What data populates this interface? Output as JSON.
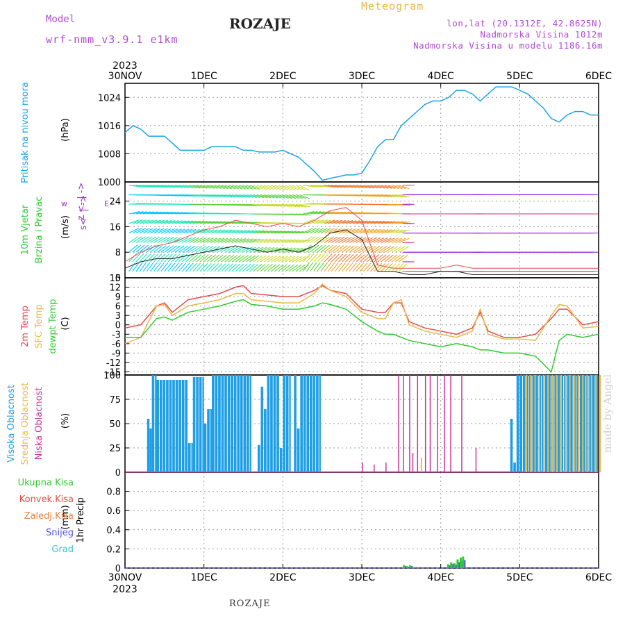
{
  "header": {
    "model_label": "Model",
    "model_name": "wrf-nmm_v3.9.1 e1km",
    "title": "ROZAJE",
    "meteogram_label": "Meteogram",
    "coords": "lon,lat (20.1312E, 42.8625N)",
    "altitude": "Nadmorska Visina 1012m",
    "model_altitude": "Nadmorska Visina u modelu 1186.16m"
  },
  "footer": {
    "location": "ROZAJE",
    "watermark": "made by Angel"
  },
  "colors": {
    "pressure": "#1aa3e8",
    "wind_label": "#2ecc2e",
    "temp2m": "#e84a4a",
    "sfc_temp": "#e8b84c",
    "dewpoint": "#2ecc2e",
    "high_cloud": "#1e9ee6",
    "mid_cloud": "#e8b84c",
    "low_cloud": "#cc3399",
    "precip_total": "#2ecc2e",
    "precip_conv": "#e84a4a",
    "precip_freezing": "#f07d3a",
    "snow": "#5050e8",
    "hail": "#3cc7c7"
  },
  "chart_data": [
    {
      "id": "pressure",
      "type": "line",
      "ylabel": "Pritisak na nivou mora",
      "unit": "(hPa)",
      "ylim": [
        1000,
        1028
      ],
      "yticks": [
        1000,
        1008,
        1016,
        1024
      ],
      "x_days": [
        0,
        0.1,
        0.2,
        0.3,
        0.4,
        0.5,
        0.6,
        0.7,
        0.8,
        0.9,
        1.0,
        1.1,
        1.2,
        1.3,
        1.4,
        1.5,
        1.6,
        1.7,
        1.8,
        1.9,
        2.0,
        2.1,
        2.2,
        2.3,
        2.4,
        2.5,
        2.6,
        2.7,
        2.8,
        2.9,
        3.0,
        3.1,
        3.2,
        3.3,
        3.4,
        3.5,
        3.6,
        3.7,
        3.8,
        3.9,
        4.0,
        4.1,
        4.2,
        4.3,
        4.4,
        4.5,
        4.6,
        4.7,
        4.8,
        4.9,
        5.0,
        5.1,
        5.2,
        5.3,
        5.4,
        5.5,
        5.6,
        5.7,
        5.8,
        5.9,
        6.0
      ],
      "values": [
        1014,
        1016,
        1015,
        1013,
        1013,
        1013,
        1011,
        1009,
        1009,
        1009,
        1009,
        1010,
        1010,
        1010,
        1010,
        1009,
        1009,
        1008.5,
        1008.5,
        1008.5,
        1009,
        1008,
        1007,
        1005,
        1003,
        1000.5,
        1001,
        1001.5,
        1002,
        1002,
        1002.5,
        1006,
        1010,
        1012,
        1012,
        1016,
        1018,
        1020,
        1022,
        1023,
        1023,
        1024,
        1026,
        1026,
        1025,
        1023,
        1025,
        1027,
        1027,
        1027,
        1026,
        1025,
        1023,
        1021,
        1018,
        1017,
        1019,
        1020,
        1020,
        1019,
        1019
      ]
    },
    {
      "id": "wind",
      "type": "line",
      "ylabel": "10m Vjetar",
      "ylabel2": "Brzina i Pravac",
      "unit": "(m/s)",
      "legend_lines": [
        "z",
        "<- | ->",
        "w",
        "E",
        "s<- | ->"
      ],
      "ylim": [
        0,
        30
      ],
      "yticks": [
        0,
        8,
        16,
        24
      ],
      "x_days": [
        0,
        0.2,
        0.4,
        0.6,
        0.8,
        1.0,
        1.2,
        1.4,
        1.6,
        1.8,
        2.0,
        2.2,
        2.4,
        2.6,
        2.8,
        3.0,
        3.2,
        3.4,
        3.6,
        3.8,
        4.0,
        4.2,
        4.4,
        4.6,
        4.8,
        5.0,
        5.2,
        5.4,
        5.6,
        5.8,
        6.0
      ],
      "speed": [
        3,
        5,
        6,
        6,
        7,
        8,
        9,
        10,
        9,
        8,
        9,
        8,
        10,
        14,
        15,
        12,
        2,
        2,
        1,
        1,
        2,
        2,
        1,
        1,
        1,
        1,
        1,
        1,
        1,
        1,
        1
      ],
      "gust": [
        5,
        8,
        10,
        11,
        13,
        15,
        16,
        18,
        17,
        16,
        17,
        16,
        18,
        21,
        22,
        18,
        4,
        3,
        3,
        3,
        3,
        4,
        3,
        3,
        3,
        3,
        3,
        3,
        3,
        3,
        3
      ]
    },
    {
      "id": "temperature",
      "type": "line",
      "ylabel": "2m Temp",
      "ylabel2": "SFC Temp",
      "ylabel3": "dewpt Temp",
      "unit": "(C)",
      "ylim": [
        -16,
        15
      ],
      "yticks": [
        -15,
        -12,
        -9,
        -6,
        -3,
        0,
        3,
        6,
        9,
        12,
        15
      ],
      "x_days": [
        0,
        0.2,
        0.4,
        0.5,
        0.6,
        0.8,
        1.0,
        1.2,
        1.4,
        1.5,
        1.6,
        1.8,
        2.0,
        2.2,
        2.4,
        2.5,
        2.6,
        2.8,
        3.0,
        3.2,
        3.3,
        3.4,
        3.5,
        3.6,
        3.8,
        4.0,
        4.2,
        4.4,
        4.5,
        4.6,
        4.8,
        5.0,
        5.2,
        5.4,
        5.5,
        5.6,
        5.8,
        6.0
      ],
      "series": [
        {
          "name": "2m Temp",
          "values": [
            -1,
            0,
            6,
            7,
            4,
            8,
            9,
            10,
            12,
            12.5,
            10,
            9.5,
            9,
            9,
            11,
            12.5,
            11,
            10,
            5,
            4,
            4,
            7,
            7,
            1,
            -1,
            -2,
            -3,
            -1,
            4,
            -2,
            -4,
            -4,
            -3,
            2,
            5,
            5,
            0,
            1
          ]
        },
        {
          "name": "SFC Temp",
          "values": [
            -6,
            -4,
            6,
            6.5,
            3,
            6,
            7,
            8,
            10,
            10,
            8,
            7.5,
            7,
            7,
            10,
            13,
            11,
            9,
            4,
            2,
            2,
            7,
            8,
            0,
            -2,
            -3,
            -4,
            -2,
            5,
            -3,
            -4.5,
            -4.5,
            -5,
            3,
            6.5,
            6,
            -1,
            -0.5
          ]
        },
        {
          "name": "dewpt Temp",
          "values": [
            -4,
            -4,
            2,
            2.5,
            1.5,
            4,
            5,
            6,
            7.5,
            8,
            6.5,
            6,
            5,
            5,
            6,
            7,
            6.5,
            5,
            1,
            -2,
            -3,
            -3,
            -4,
            -5,
            -6,
            -7,
            -6,
            -7,
            -8,
            -8,
            -9,
            -9,
            -10,
            -15,
            -5,
            -3,
            -4,
            -3
          ]
        }
      ]
    },
    {
      "id": "clouds",
      "type": "bar",
      "ylabel": "Visoka Oblacnost",
      "ylabel2": "Srednja Oblacnost",
      "ylabel3": "Niska Oblacnost",
      "unit": "(%)",
      "ylim": [
        0,
        100
      ],
      "yticks": [
        0,
        25,
        50,
        75,
        100
      ],
      "series": [
        {
          "name": "Visoka Oblacnost",
          "segments": [
            [
              0.28,
              0.31,
              55
            ],
            [
              0.31,
              0.34,
              45
            ],
            [
              0.34,
              0.4,
              100
            ],
            [
              0.4,
              0.8,
              95
            ],
            [
              0.8,
              0.86,
              30
            ],
            [
              0.86,
              1.0,
              98
            ],
            [
              1.0,
              1.04,
              50
            ],
            [
              1.04,
              1.1,
              65
            ],
            [
              1.1,
              1.6,
              100
            ],
            [
              1.68,
              1.72,
              28
            ],
            [
              1.72,
              1.76,
              88
            ],
            [
              1.76,
              1.8,
              65
            ],
            [
              1.8,
              1.96,
              100
            ],
            [
              1.96,
              2.0,
              25
            ],
            [
              2.0,
              2.1,
              100
            ],
            [
              2.14,
              2.18,
              100
            ],
            [
              2.18,
              2.22,
              45
            ],
            [
              2.22,
              2.48,
              100
            ],
            [
              4.88,
              4.92,
              55
            ],
            [
              4.92,
              4.96,
              10
            ],
            [
              4.96,
              6.0,
              100
            ]
          ]
        },
        {
          "name": "Srednja Oblacnost",
          "segments": [
            [
              3.72,
              3.74,
              15
            ],
            [
              5.05,
              6.0,
              100
            ]
          ]
        },
        {
          "name": "Niska Oblacnost",
          "spikes": [
            [
              3.46,
              100
            ],
            [
              3.52,
              100
            ],
            [
              3.6,
              100
            ],
            [
              3.64,
              20
            ],
            [
              3.7,
              100
            ],
            [
              3.8,
              100
            ],
            [
              3.86,
              100
            ],
            [
              3.95,
              100
            ],
            [
              4.04,
              100
            ],
            [
              4.12,
              100
            ],
            [
              4.26,
              100
            ],
            [
              4.44,
              25
            ],
            [
              3.0,
              10
            ],
            [
              3.15,
              8
            ],
            [
              3.3,
              10
            ]
          ]
        }
      ]
    },
    {
      "id": "precipitation",
      "type": "bar",
      "ylabel": "1hr Precip",
      "unit": "(mm)",
      "ylim": [
        0,
        1.0
      ],
      "yticks": [
        0,
        0.2,
        0.4,
        0.6,
        0.8
      ],
      "legend": [
        "Ukupna Kisa",
        "Konvek.Kisa",
        "Zaledj.Kisa",
        "Snijeg",
        "Grad"
      ],
      "x_days": [
        3.52,
        3.56,
        3.6,
        3.64,
        4.08,
        4.12,
        4.16,
        4.2,
        4.24,
        4.27
      ],
      "values": [
        0.03,
        0.02,
        0.03,
        0.01,
        0.04,
        0.06,
        0.05,
        0.09,
        0.11,
        0.12
      ]
    }
  ],
  "xaxis": {
    "year": "2023",
    "ticks": [
      "30NOV",
      "1DEC",
      "2DEC",
      "3DEC",
      "4DEC",
      "5DEC",
      "6DEC"
    ]
  },
  "legend": {
    "wind_dir": [
      "z",
      "<- | ->",
      "w",
      "E",
      "s<- | ->"
    ]
  }
}
